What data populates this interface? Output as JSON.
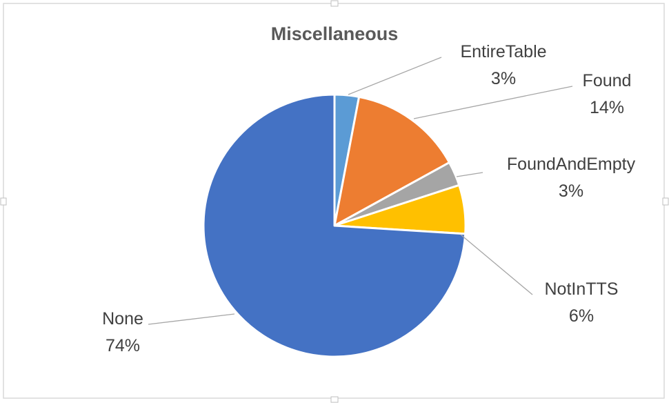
{
  "chart_data": {
    "type": "pie",
    "title": "Miscellaneous",
    "categories": [
      "EntireTable",
      "Found",
      "FoundAndEmpty",
      "NotInTTS",
      "None"
    ],
    "values": [
      3,
      14,
      3,
      6,
      74
    ],
    "labels": [
      "3%",
      "14%",
      "3%",
      "6%",
      "74%"
    ],
    "colors": [
      "#5B9BD5",
      "#ED7D31",
      "#A5A5A5",
      "#FFC000",
      "#4472C4"
    ],
    "legend": "none"
  }
}
